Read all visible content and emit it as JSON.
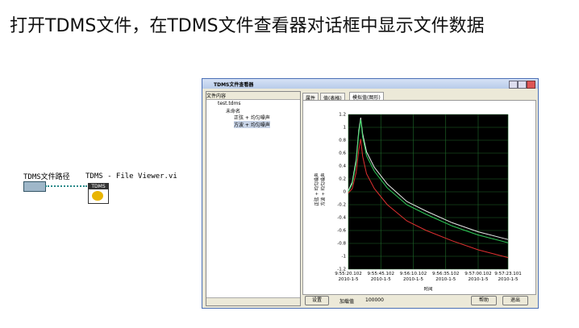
{
  "header": {
    "title": "打开TDMS文件，在TDMS文件查看器对话框中显示文件数据"
  },
  "block_diagram": {
    "control_label": "TDMS文件路径",
    "vi_label": "TDMS - File Viewer.vi",
    "vi_icon_text": "TDMS"
  },
  "window": {
    "title": "TDMS文件查看器",
    "tree_header": "文件内容",
    "tree": [
      "test.tdms",
      "未命名",
      "正弦 + 均匀噪声",
      "方波 + 均匀噪声"
    ],
    "tabs": [
      "属性",
      "值(表格)",
      "模拟值(图形)"
    ],
    "buttons": {
      "settings": "设置",
      "help": "帮助",
      "exit": "退出"
    },
    "load_label": "加载值",
    "load_value": 100000
  },
  "chart_data": {
    "type": "line",
    "xlabel": "时间",
    "ylabel_lines": [
      "正弦 + 均匀噪声",
      "方波 + 均匀噪声"
    ],
    "xlim": [
      0,
      123
    ],
    "ylim": [
      -1.2,
      1.2
    ],
    "xticks": [
      {
        "value": 0,
        "label": "9:55:20.102\n2010-1-5"
      },
      {
        "value": 25,
        "label": "9:55:45.102\n2010-1-5"
      },
      {
        "value": 50,
        "label": "9:56:10.102\n2010-1-5"
      },
      {
        "value": 75,
        "label": "9:56:35.102\n2010-1-5"
      },
      {
        "value": 100,
        "label": "9:57:00.102\n2010-1-5"
      },
      {
        "value": 123,
        "label": "9:57:23.101\n2010-1-5"
      }
    ],
    "yticks": [
      1.2,
      1,
      0.8,
      0.6,
      0.4,
      0.2,
      0,
      -0.2,
      -0.4,
      -0.6,
      -0.8,
      -1,
      -1.2
    ],
    "grid": true,
    "x": [
      0,
      3,
      6,
      8,
      9.5,
      11,
      14,
      20,
      30,
      45,
      60,
      80,
      100,
      123
    ],
    "series": [
      {
        "name": "白",
        "color": "#e8e8e8",
        "values": [
          0.02,
          0.15,
          0.5,
          0.95,
          1.15,
          0.9,
          0.62,
          0.38,
          0.12,
          -0.15,
          -0.3,
          -0.48,
          -0.62,
          -0.74
        ]
      },
      {
        "name": "绿",
        "color": "#2fd05a",
        "values": [
          0.0,
          0.12,
          0.45,
          0.9,
          1.12,
          0.85,
          0.56,
          0.32,
          0.06,
          -0.2,
          -0.35,
          -0.53,
          -0.67,
          -0.79
        ]
      },
      {
        "name": "红",
        "color": "#e03030",
        "values": [
          -0.02,
          0.05,
          0.3,
          0.65,
          0.82,
          0.55,
          0.28,
          0.05,
          -0.2,
          -0.45,
          -0.6,
          -0.76,
          -0.9,
          -1.02
        ]
      }
    ]
  }
}
